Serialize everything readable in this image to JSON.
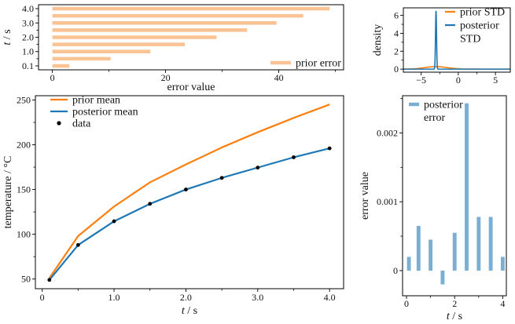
{
  "figure": {
    "background": "#ffffff"
  },
  "colors": {
    "orange": "#ff7f0e",
    "blue": "#1f77b4",
    "light_orange": "#fac394",
    "light_blue": "#7aafd4",
    "black": "#000000"
  },
  "chart_data": [
    {
      "id": "prior-error",
      "type": "bar",
      "orientation": "horizontal",
      "title": "",
      "xlabel": "error value",
      "ylabel": "t / s",
      "categories": [
        "0.1",
        "0.5",
        "1.0",
        "1.5",
        "2.0",
        "2.5",
        "3.0",
        "3.5",
        "4.0"
      ],
      "values": [
        3.0,
        10.3,
        17.3,
        23.4,
        29.0,
        34.4,
        39.6,
        44.3,
        49.0
      ],
      "bar_color": "light_orange",
      "xlim": [
        -2.45,
        51.45
      ],
      "xticks": {
        "major": [
          0,
          20,
          40
        ],
        "major_labels": [
          "0",
          "20",
          "40"
        ],
        "minor": [
          10,
          30,
          50
        ]
      },
      "yticks": {
        "label_rows": [
          0,
          2,
          4,
          6,
          8
        ],
        "labels": [
          "0.1",
          "1.0",
          "2.0",
          "3.0",
          "4.0"
        ],
        "minor_rows": [
          1,
          3,
          5,
          7
        ]
      },
      "grid": false,
      "legend": {
        "position": "lower right",
        "entries": [
          {
            "label": "prior error",
            "lines": [
              "prior error"
            ],
            "color": "light_orange",
            "marker": "thick-line"
          }
        ]
      }
    },
    {
      "id": "std-density",
      "type": "line",
      "title": "",
      "xlabel": "",
      "ylabel": "density",
      "xlim": [
        -7.4,
        7.0
      ],
      "ylim": [
        -0.34,
        6.84
      ],
      "xticks": {
        "major": [
          -5,
          0,
          5
        ],
        "major_labels": [
          "−5",
          "0",
          "5"
        ],
        "minor": [
          -2.5,
          2.5
        ]
      },
      "yticks": {
        "major": [
          0,
          2,
          4,
          6
        ],
        "major_labels": [
          "0",
          "2",
          "4",
          "6"
        ],
        "minor": [
          1,
          3,
          5
        ]
      },
      "grid": false,
      "series": [
        {
          "name": "prior STD",
          "color": "orange",
          "shape": "gaussian",
          "center": -3.0,
          "sigma": 1.5,
          "peak": 0.28
        },
        {
          "name": "posterior STD",
          "color": "blue",
          "shape": "gaussian",
          "center": -3.0,
          "sigma": 0.07,
          "peak": 6.5
        }
      ],
      "legend": {
        "position": "upper right",
        "entries": [
          {
            "label": "prior STD",
            "lines": [
              "prior STD"
            ],
            "color": "orange",
            "marker": "line"
          },
          {
            "label": "posterior STD",
            "lines": [
              "posterior",
              "STD"
            ],
            "color": "blue",
            "marker": "line"
          }
        ]
      }
    },
    {
      "id": "mean-temperature",
      "type": "line",
      "title": "",
      "xlabel": "t / s",
      "ylabel": "temperature / °C",
      "x": [
        0.1,
        0.5,
        1.0,
        1.5,
        2.0,
        2.5,
        3.0,
        3.5,
        4.0
      ],
      "series": [
        {
          "name": "prior mean",
          "color": "orange",
          "kind": "line",
          "values": [
            51,
            98,
            131,
            158,
            178,
            197,
            214,
            230,
            245
          ]
        },
        {
          "name": "posterior mean",
          "color": "blue",
          "kind": "line",
          "values": [
            49,
            88,
            114.5,
            134,
            150,
            163,
            174.5,
            186,
            196
          ]
        },
        {
          "name": "data",
          "color": "black",
          "kind": "scatter",
          "values": [
            49,
            88,
            114.5,
            134,
            150,
            163,
            174.5,
            186,
            196
          ]
        }
      ],
      "xlim": [
        -0.095,
        4.195
      ],
      "ylim": [
        39.2,
        254.8
      ],
      "xticks": {
        "major": [
          0,
          1,
          2,
          3,
          4
        ],
        "major_labels": [
          "0",
          "1.0",
          "2.0",
          "3.0",
          "4.0"
        ],
        "minor": [
          0.5,
          1.5,
          2.5,
          3.5
        ]
      },
      "yticks": {
        "major": [
          50,
          100,
          150,
          200,
          250
        ],
        "major_labels": [
          "50",
          "100",
          "150",
          "200",
          "250"
        ],
        "minor": [
          75,
          125,
          175,
          225
        ]
      },
      "grid": false,
      "legend": {
        "position": "upper left",
        "entries": [
          {
            "label": "prior mean",
            "lines": [
              "prior mean"
            ],
            "color": "orange",
            "marker": "line"
          },
          {
            "label": "posterior mean",
            "lines": [
              "posterior mean"
            ],
            "color": "blue",
            "marker": "line"
          },
          {
            "label": "data",
            "lines": [
              "data"
            ],
            "color": "black",
            "marker": "dot"
          }
        ]
      }
    },
    {
      "id": "posterior-error",
      "type": "bar",
      "orientation": "vertical",
      "title": "",
      "xlabel": "t / s",
      "ylabel": "error value",
      "categories": [
        0.1,
        0.5,
        1.0,
        1.5,
        2.0,
        2.5,
        3.0,
        3.5,
        4.0
      ],
      "values": [
        0.0002,
        0.00065,
        0.00045,
        -0.0002,
        0.00055,
        0.00243,
        0.00078,
        0.00078,
        0.0002
      ],
      "bar_color": "light_blue",
      "xlim": [
        -0.164,
        4.15
      ],
      "ylim": [
        -0.000365,
        0.00254
      ],
      "xticks": {
        "major": [
          0,
          2,
          4
        ],
        "major_labels": [
          "0",
          "2",
          "4"
        ],
        "minor": [
          1,
          3
        ]
      },
      "yticks": {
        "major": [
          0,
          0.001,
          0.002
        ],
        "major_labels": [
          "0",
          "0.001",
          "0.002"
        ],
        "minor": [
          0.0005,
          0.0015,
          0.0025
        ]
      },
      "grid": false,
      "legend": {
        "position": "upper left",
        "entries": [
          {
            "label": "posterior error",
            "lines": [
              "posterior",
              "error"
            ],
            "color": "light_blue",
            "marker": "thick-line"
          }
        ]
      }
    }
  ]
}
